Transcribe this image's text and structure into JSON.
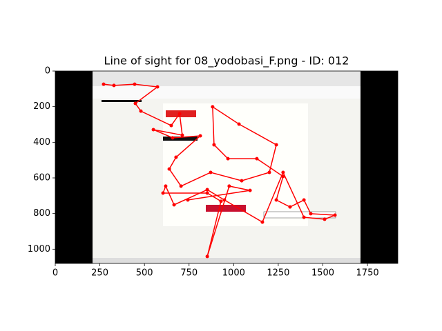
{
  "chart_data": {
    "type": "line",
    "title": "Line of sight for 08_yodobasi_F.png - ID: 012",
    "color": "#ff0000",
    "x": [
      271,
      329,
      445,
      573,
      449,
      480,
      650,
      697,
      712,
      550,
      658,
      813,
      677,
      639,
      705,
      871,
      1045,
      1200,
      1239,
      1030,
      882,
      890,
      968,
      1130,
      1277,
      1239,
      1316,
      1394,
      1432,
      1568,
      1510,
      1394,
      1277,
      1161,
      948,
      852,
      666,
      619,
      604,
      852,
      929,
      852,
      975,
      1092,
      743
    ],
    "values": [
      74,
      81,
      74,
      89,
      182,
      225,
      306,
      240,
      360,
      329,
      375,
      364,
      484,
      550,
      646,
      569,
      616,
      569,
      414,
      298,
      201,
      414,
      492,
      492,
      592,
      724,
      763,
      724,
      801,
      809,
      832,
      821,
      569,
      848,
      724,
      666,
      751,
      646,
      685,
      685,
      731,
      1041,
      646,
      670,
      724
    ],
    "xlim": [
      0,
      1920
    ],
    "ylim": [
      1080,
      0
    ],
    "xticks": [
      0,
      250,
      500,
      750,
      1000,
      1250,
      1500,
      1750
    ],
    "yticks": [
      0,
      200,
      400,
      600,
      800,
      1000
    ]
  }
}
